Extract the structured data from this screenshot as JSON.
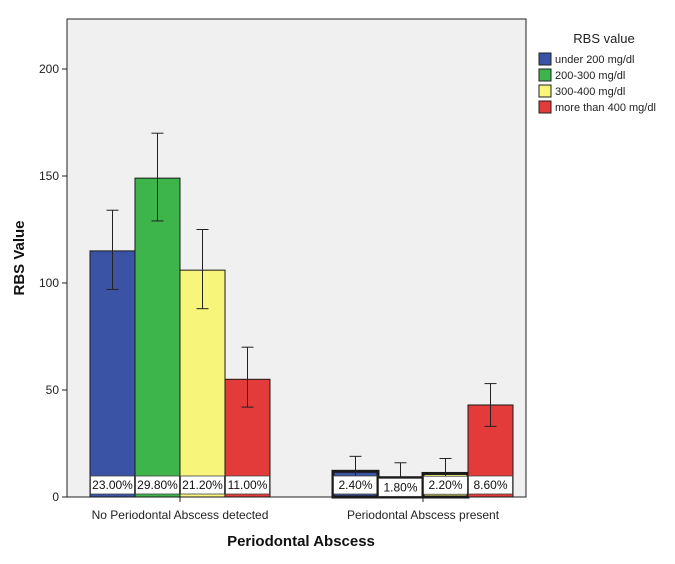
{
  "chart_data": {
    "type": "bar",
    "xlabel": "Periodontal Abscess",
    "ylabel": "RBS Value",
    "ylim": [
      0,
      220
    ],
    "yticks": [
      0,
      50,
      100,
      150,
      200
    ],
    "grid": false,
    "legend_title": "RBS value",
    "legend_position": "top-right",
    "categories": [
      "No Periodontal Abscess detected",
      "Periodontal Abscess present"
    ],
    "series": [
      {
        "name": "under 200 mg/dl",
        "color": "#3a53a4",
        "values": [
          115,
          12
        ],
        "error_low": [
          97,
          5
        ],
        "error_high": [
          134,
          19
        ],
        "labels": [
          "23.00%",
          "2.40%"
        ]
      },
      {
        "name": "200-300 mg/dl",
        "color": "#3db54a",
        "values": [
          149,
          9
        ],
        "error_low": [
          129,
          2
        ],
        "error_high": [
          170,
          16
        ],
        "labels": [
          "29.80%",
          "1.80%"
        ]
      },
      {
        "name": "300-400 mg/dl",
        "color": "#f7f57a",
        "values": [
          106,
          11
        ],
        "error_low": [
          88,
          4
        ],
        "error_high": [
          125,
          18
        ],
        "labels": [
          "21.20%",
          "2.20%"
        ]
      },
      {
        "name": "more than 400 mg/dl",
        "color": "#e33a3a",
        "values": [
          55,
          43
        ],
        "error_low": [
          42,
          33
        ],
        "error_high": [
          70,
          53
        ],
        "labels": [
          "11.00%",
          "8.60%"
        ]
      }
    ]
  }
}
